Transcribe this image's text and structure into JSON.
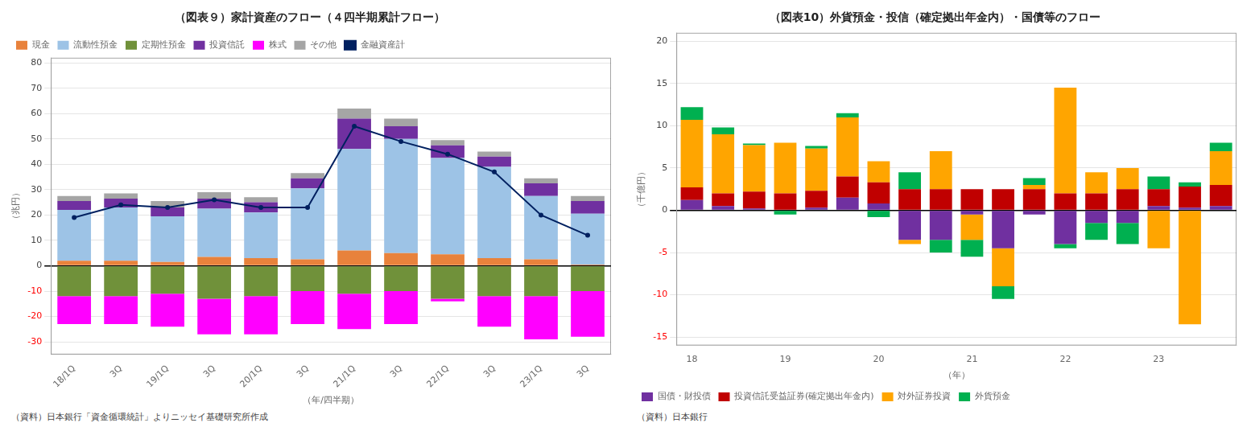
{
  "chart_data": [
    {
      "type": "bar",
      "title": "（図表９）家計資産のフロー（４四半期累計フロー）",
      "ylabel": "（兆円）",
      "xlabel": "（年/四半期）",
      "annotations": [
        "（資料）日本銀行「資金循環統計」よりニッセイ基礎研究所作成"
      ],
      "categories": [
        "18/1Q",
        "3Q",
        "19/1Q",
        "3Q",
        "20/1Q",
        "3Q",
        "21/1Q",
        "3Q",
        "22/1Q",
        "3Q",
        "23/1Q",
        "3Q"
      ],
      "series": [
        {
          "name": "現金",
          "color": "#E8823C",
          "values": [
            2.0,
            2.0,
            1.5,
            3.5,
            3.0,
            2.5,
            6.0,
            5.0,
            4.5,
            3.0,
            2.5,
            0.5
          ]
        },
        {
          "name": "流動性預金",
          "color": "#9DC3E6",
          "values": [
            20.0,
            21.0,
            18.0,
            19.0,
            18.0,
            28.0,
            40.0,
            45.0,
            38.0,
            36.0,
            25.0,
            20.0
          ]
        },
        {
          "name": "定期性預金",
          "color": "#70913A",
          "values": [
            -12.0,
            -12.0,
            -11.0,
            -13.0,
            -12.0,
            -10.0,
            -11.0,
            -10.0,
            -13.0,
            -12.0,
            -12.0,
            -10.0
          ]
        },
        {
          "name": "投資信託",
          "color": "#7030A0",
          "values": [
            3.5,
            3.5,
            3.5,
            4.0,
            4.0,
            4.0,
            12.0,
            5.0,
            5.0,
            4.0,
            5.0,
            5.0
          ]
        },
        {
          "name": "株式",
          "color": "#FF00FF",
          "values": [
            -11.0,
            -11.0,
            -13.0,
            -14.0,
            -15.0,
            -13.0,
            -14.0,
            -13.0,
            -1.0,
            -12.0,
            -17.0,
            -18.0
          ]
        },
        {
          "name": "その他",
          "color": "#A5A5A5",
          "values": [
            2.0,
            2.0,
            2.5,
            2.5,
            2.0,
            2.0,
            4.0,
            3.0,
            2.0,
            2.0,
            2.0,
            2.0
          ]
        },
        {
          "name": "金融資産計",
          "color": "#002060",
          "type": "line",
          "values": [
            19.0,
            24.0,
            23.0,
            26.0,
            23.0,
            23.0,
            55.0,
            49.0,
            44.0,
            37.0,
            20.0,
            12.0
          ]
        }
      ],
      "stacked": true,
      "ylim": [
        -35,
        82
      ],
      "yticks": [
        -30,
        -20,
        -10,
        0,
        10,
        20,
        30,
        40,
        50,
        60,
        70,
        80
      ],
      "grid": true,
      "legend": "upper left"
    },
    {
      "type": "bar",
      "title": "（図表10）外貨預金・投信（確定拠出年金内）・国債等のフロー",
      "ylabel": "（千億円）",
      "xlabel": "（年）",
      "annotations": [
        "（資料）日本銀行"
      ],
      "categories": [
        "18",
        null,
        null,
        "19",
        null,
        null,
        "20",
        null,
        null,
        "21",
        null,
        null,
        "22",
        null,
        null,
        "23",
        null,
        null
      ],
      "series": [
        {
          "name": "国債・財投債",
          "color": "#7030A0",
          "values": [
            1.2,
            0.5,
            0.2,
            0.0,
            0.3,
            1.5,
            0.8,
            -3.5,
            -3.5,
            -0.5,
            -4.5,
            -0.5,
            -4.0,
            -1.5,
            -1.5,
            0.5,
            0.3,
            0.5
          ]
        },
        {
          "name": "投資信託受益証券(確定拠出年金内)",
          "color": "#C00000",
          "values": [
            1.5,
            1.5,
            2.0,
            2.0,
            2.0,
            2.5,
            2.5,
            2.5,
            2.5,
            2.5,
            2.5,
            2.5,
            2.0,
            2.0,
            2.5,
            2.0,
            2.5,
            2.5
          ]
        },
        {
          "name": "対外証券投資",
          "color": "#FFA500",
          "values": [
            8.0,
            7.0,
            5.5,
            6.0,
            5.0,
            7.0,
            2.5,
            -0.5,
            4.5,
            -3.0,
            -4.5,
            0.5,
            12.5,
            2.5,
            2.5,
            -4.5,
            -13.5,
            4.0
          ]
        },
        {
          "name": "外貨預金",
          "color": "#00B050",
          "values": [
            1.5,
            0.8,
            0.2,
            -0.5,
            0.3,
            0.5,
            -0.8,
            2.0,
            -1.5,
            -2.0,
            -1.5,
            0.8,
            -0.5,
            -2.0,
            -2.5,
            1.5,
            0.5,
            1.0
          ]
        }
      ],
      "stacked": true,
      "ylim": [
        -16,
        21
      ],
      "yticks": [
        -15,
        -10,
        -5,
        0,
        5,
        10,
        15,
        20
      ],
      "grid": true,
      "legend": "lower left"
    }
  ]
}
